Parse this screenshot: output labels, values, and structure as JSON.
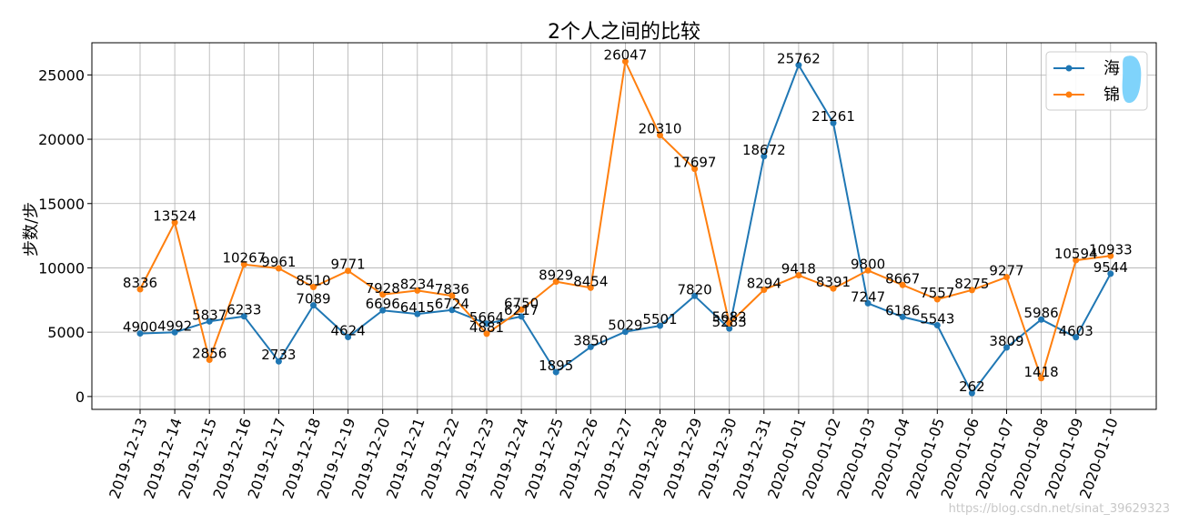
{
  "chart_data": {
    "type": "line",
    "title": "2个人之间的比较",
    "xlabel": "",
    "ylabel": "步数/步",
    "ylim": [
      -1000,
      27500
    ],
    "yticks": [
      0,
      5000,
      10000,
      15000,
      20000,
      25000
    ],
    "grid": true,
    "legend_position": "top-right",
    "categories": [
      "2019-12-13",
      "2019-12-14",
      "2019-12-15",
      "2019-12-16",
      "2019-12-17",
      "2019-12-18",
      "2019-12-19",
      "2019-12-20",
      "2019-12-21",
      "2019-12-22",
      "2019-12-23",
      "2019-12-24",
      "2019-12-25",
      "2019-12-26",
      "2019-12-27",
      "2019-12-28",
      "2019-12-29",
      "2019-12-30",
      "2019-12-31",
      "2020-01-01",
      "2020-01-02",
      "2020-01-03",
      "2020-01-04",
      "2020-01-05",
      "2020-01-06",
      "2020-01-07",
      "2020-01-08",
      "2020-01-09",
      "2020-01-10"
    ],
    "series": [
      {
        "name": "海",
        "color": "#1f77b4",
        "values": [
          4900,
          4992,
          5837,
          6233,
          2733,
          7089,
          4624,
          6696,
          6415,
          6724,
          5664,
          6217,
          1895,
          3850,
          5029,
          5501,
          7820,
          5283,
          18672,
          25762,
          21261,
          7247,
          6186,
          5543,
          262,
          3809,
          5986,
          4603,
          9544
        ]
      },
      {
        "name": "锦",
        "color": "#ff7f0e",
        "values": [
          8336,
          13524,
          2856,
          10267,
          9961,
          8510,
          9771,
          7928,
          8234,
          7836,
          4881,
          6750,
          8929,
          8454,
          26047,
          20310,
          17697,
          5682,
          8294,
          9418,
          8391,
          9800,
          8667,
          7557,
          8275,
          9277,
          1418,
          10594,
          10933
        ]
      }
    ]
  },
  "watermark": "https://blog.csdn.net/sinat_39629323"
}
